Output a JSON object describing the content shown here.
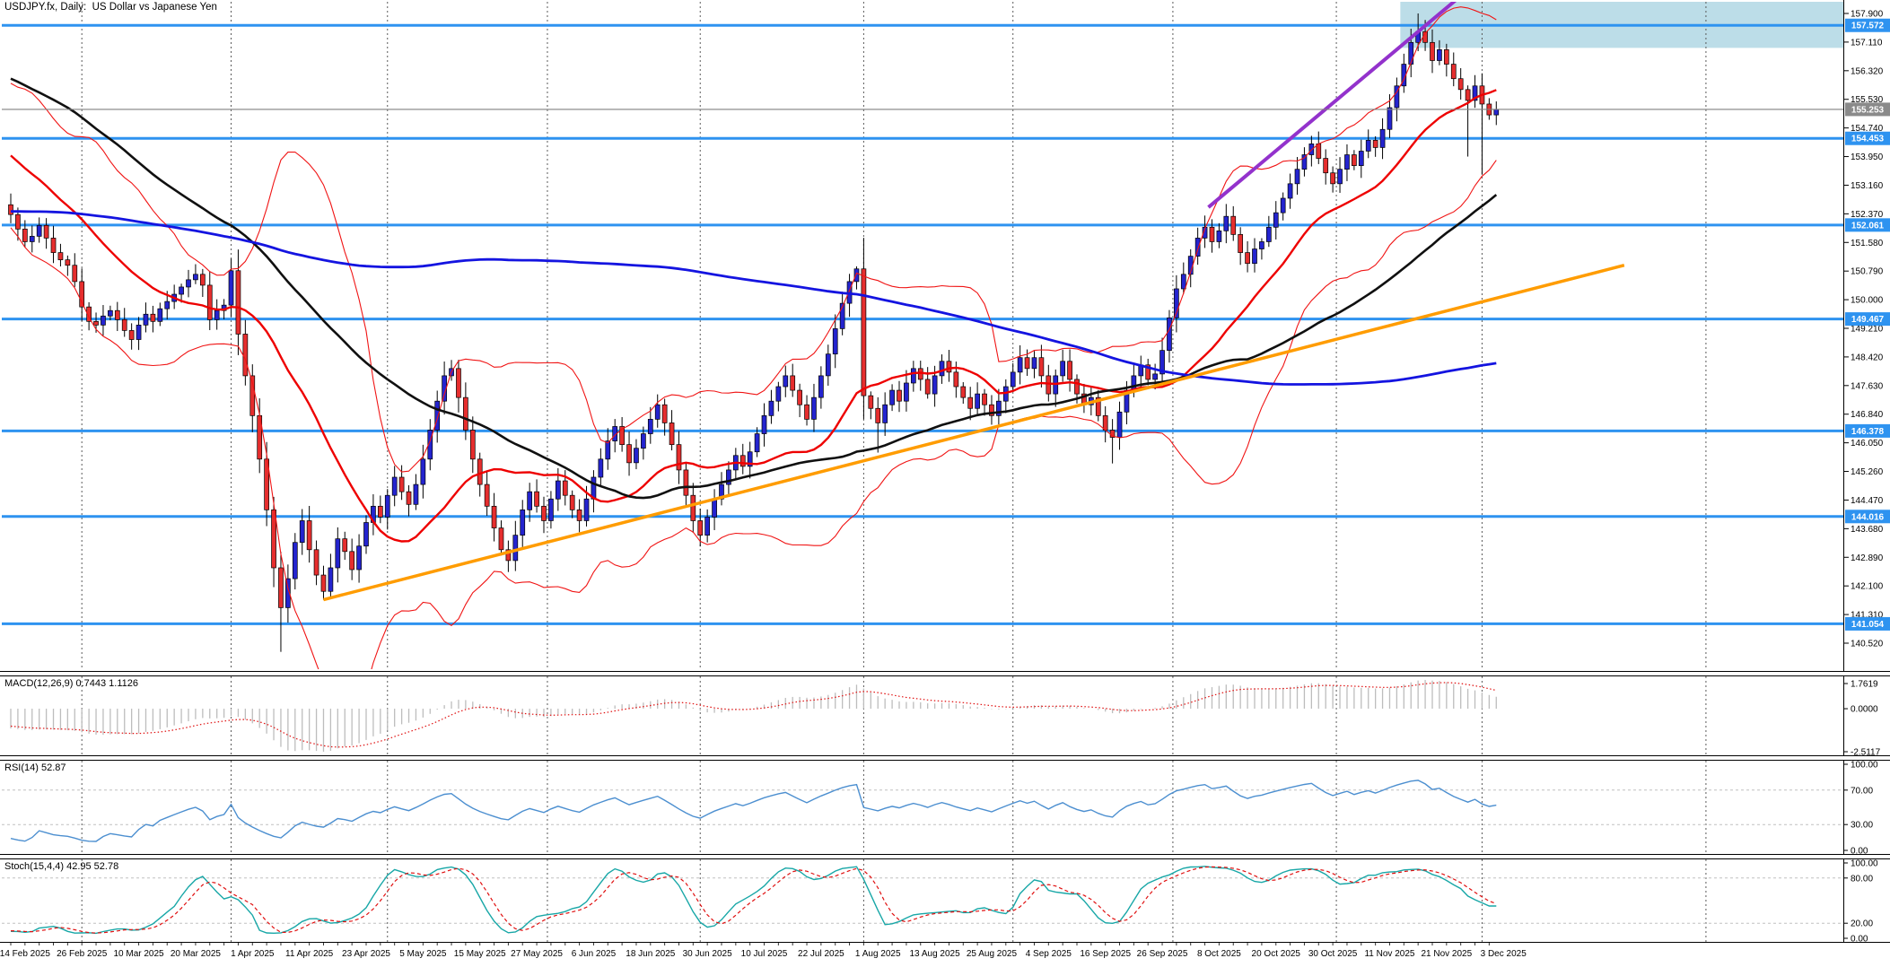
{
  "window": {
    "title": "USDJPY.fx, Daily:  US Dollar vs Japanese Yen"
  },
  "colors": {
    "background": "#ffffff",
    "grid": "#5a5a5a",
    "level_line_blue": "#2e93f0",
    "badge_blue": "#2e93f0",
    "badge_gray": "#8a8a8a",
    "current_price_line": "#808080",
    "candle_up": "#2424cf",
    "candle_down": "#e62e2e",
    "candle_outline": "#000000",
    "bollinger_band": "#f01414",
    "sma_fast": "#ee0000",
    "sma_mid": "#101010",
    "sma_slow": "#1414e0",
    "trendline_orange": "#ff9c00",
    "trendline_purple": "#9332cc",
    "zone_fill": "#b5d9e5",
    "macd_histogram": "#bdbdbd",
    "macd_signal": "#e01010",
    "rsi_line": "#4c8fd0",
    "stoch_k": "#18a7a7",
    "stoch_d": "#e01010",
    "panel_level_dash": "#c0c0c0"
  },
  "chart_data": {
    "type": "candlestick",
    "symbol": "USDJPY.fx",
    "timeframe": "Daily",
    "description": "US Dollar vs Japanese Yen daily candlestick chart with Bollinger bands, three moving averages, two uptrend lines, supply zone and horizontal support/resistance levels",
    "price_axis_top": 157.9,
    "price_axis_bottom": 140.52,
    "y_axis_ticks": [
      "157.900",
      "157.110",
      "156.320",
      "155.530",
      "154.740",
      "153.950",
      "153.160",
      "152.370",
      "151.580",
      "150.790",
      "150.000",
      "149.210",
      "148.420",
      "147.630",
      "146.840",
      "146.050",
      "145.260",
      "144.470",
      "143.680",
      "142.890",
      "142.100",
      "141.310",
      "140.520"
    ],
    "horizontal_levels": [
      157.572,
      154.453,
      152.061,
      149.467,
      146.378,
      144.016,
      141.054
    ],
    "current_price": 155.253,
    "current_price_label": "155.253",
    "x_axis_labels": [
      "14 Feb 2025",
      "26 Feb 2025",
      "10 Mar 2025",
      "20 Mar 2025",
      "1 Apr 2025",
      "11 Apr 2025",
      "23 Apr 2025",
      "5 May 2025",
      "15 May 2025",
      "27 May 2025",
      "6 Jun 2025",
      "18 Jun 2025",
      "30 Jun 2025",
      "10 Jul 2025",
      "22 Jul 2025",
      "1 Aug 2025",
      "13 Aug 2025",
      "25 Aug 2025",
      "4 Sep 2025",
      "16 Sep 2025",
      "26 Sep 2025",
      "8 Oct 2025",
      "20 Oct 2025",
      "30 Oct 2025",
      "11 Nov 2025",
      "21 Nov 2025",
      "3 Dec 2025"
    ],
    "first_open": 152.62,
    "closes": [
      152.35,
      151.95,
      151.6,
      151.75,
      152.05,
      151.7,
      151.3,
      151.1,
      150.95,
      150.5,
      149.8,
      149.4,
      149.3,
      149.55,
      149.7,
      149.45,
      149.15,
      148.9,
      149.3,
      149.6,
      149.4,
      149.75,
      149.95,
      150.15,
      150.35,
      150.55,
      150.7,
      150.4,
      149.45,
      149.7,
      149.85,
      150.8,
      149.05,
      147.9,
      146.8,
      145.6,
      144.2,
      142.6,
      141.5,
      142.3,
      143.3,
      143.9,
      143.1,
      142.4,
      141.95,
      142.6,
      143.4,
      143.05,
      142.55,
      143.2,
      143.85,
      144.3,
      144.0,
      144.6,
      145.1,
      144.7,
      144.35,
      144.9,
      145.6,
      146.4,
      147.2,
      147.9,
      148.1,
      147.3,
      146.4,
      145.6,
      144.9,
      144.3,
      143.7,
      143.1,
      142.8,
      143.5,
      144.2,
      144.7,
      144.3,
      143.9,
      144.5,
      145.0,
      144.6,
      144.2,
      143.9,
      144.5,
      145.1,
      145.6,
      146.1,
      146.5,
      146.0,
      145.5,
      145.9,
      146.3,
      146.7,
      147.1,
      146.6,
      146.0,
      145.3,
      144.6,
      143.9,
      143.5,
      144.0,
      144.5,
      144.9,
      145.3,
      145.7,
      145.4,
      145.8,
      146.3,
      146.8,
      147.2,
      147.6,
      147.9,
      147.5,
      147.1,
      146.7,
      147.3,
      147.9,
      148.5,
      149.2,
      149.9,
      150.5,
      150.85,
      147.35,
      147.0,
      146.6,
      147.1,
      147.5,
      147.2,
      147.7,
      148.1,
      147.8,
      147.4,
      147.9,
      148.3,
      148.0,
      147.6,
      147.3,
      147.0,
      147.4,
      147.1,
      146.8,
      147.2,
      147.6,
      148.0,
      148.4,
      148.1,
      148.4,
      147.9,
      147.4,
      147.9,
      148.3,
      147.8,
      147.4,
      147.1,
      147.3,
      146.8,
      146.4,
      146.2,
      146.9,
      147.5,
      147.9,
      148.2,
      147.8,
      147.95,
      148.6,
      149.5,
      150.3,
      150.7,
      151.2,
      151.7,
      152.0,
      151.6,
      151.9,
      152.3,
      151.8,
      151.3,
      151.0,
      151.4,
      151.6,
      152.0,
      152.4,
      152.8,
      153.2,
      153.6,
      154.0,
      154.3,
      153.9,
      153.5,
      153.2,
      153.6,
      154.0,
      153.7,
      154.1,
      154.4,
      154.2,
      154.7,
      155.3,
      155.9,
      156.5,
      157.1,
      157.4,
      157.1,
      156.6,
      156.9,
      156.5,
      156.1,
      155.8,
      155.5,
      155.9,
      155.4,
      155.1,
      155.253
    ],
    "wick_overrides": {
      "38": {
        "low": 140.28
      },
      "44": {
        "low": 141.72
      },
      "119": {
        "high": 150.92
      },
      "120": {
        "low": 146.7
      },
      "122": {
        "low": 145.78
      },
      "155": {
        "low": 145.48
      },
      "198": {
        "high": 157.9
      },
      "199": {
        "high": 157.72
      },
      "205": {
        "low": 153.95
      },
      "207": {
        "low": 153.45
      }
    },
    "trendlines": [
      {
        "name": "orange-uptrend-line",
        "color_key": "trendline_orange",
        "width": 3.5,
        "points": [
          [
            44,
            141.72
          ],
          [
            227,
            150.95
          ]
        ]
      },
      {
        "name": "purple-uptrend-line",
        "color_key": "trendline_purple",
        "width": 4,
        "points": [
          [
            168.5,
            152.55
          ],
          [
            203.5,
            158.3
          ]
        ]
      }
    ],
    "supply_zone": {
      "start_bar": 195.5,
      "price_top": 158.25,
      "price_bottom": 156.95
    },
    "overlays": {
      "bollinger": {
        "period": 20,
        "deviation": 2
      },
      "sma_fast_period": 20,
      "sma_mid_period": 55,
      "sma_slow_period": 190
    },
    "month_gridline_bars": [
      10,
      31,
      53,
      75.5,
      97,
      120,
      141,
      163.5,
      186.5,
      207,
      238.5
    ],
    "prehistory_anchors": [
      [
        0,
        151.5
      ],
      [
        30,
        157.5
      ],
      [
        60,
        141.8
      ],
      [
        90,
        149.0
      ],
      [
        130,
        156.3
      ],
      [
        155,
        158.3
      ],
      [
        189,
        152.6
      ]
    ],
    "indicators": {
      "macd": {
        "label": "MACD(12,26,9) 0.7443 1.1126",
        "params": [
          12,
          26,
          9
        ],
        "values": [
          "0.7443",
          "1.1126"
        ],
        "axis_labels": [
          "1.7619",
          "0.0000",
          "-2.5117"
        ]
      },
      "rsi": {
        "label": "RSI(14) 52.87",
        "period": 14,
        "value": "52.87",
        "levels": [
          70,
          30
        ],
        "axis_labels": [
          "100.00",
          "70.00",
          "30.00",
          "0.00"
        ]
      },
      "stoch": {
        "label": "Stoch(15,4,4) 42.95 52.78",
        "params": [
          15,
          4,
          4
        ],
        "values": [
          "42.95",
          "52.78"
        ],
        "levels": [
          80,
          20
        ],
        "axis_labels": [
          "100.00",
          "80.00",
          "20.00",
          "0.00"
        ]
      }
    }
  }
}
